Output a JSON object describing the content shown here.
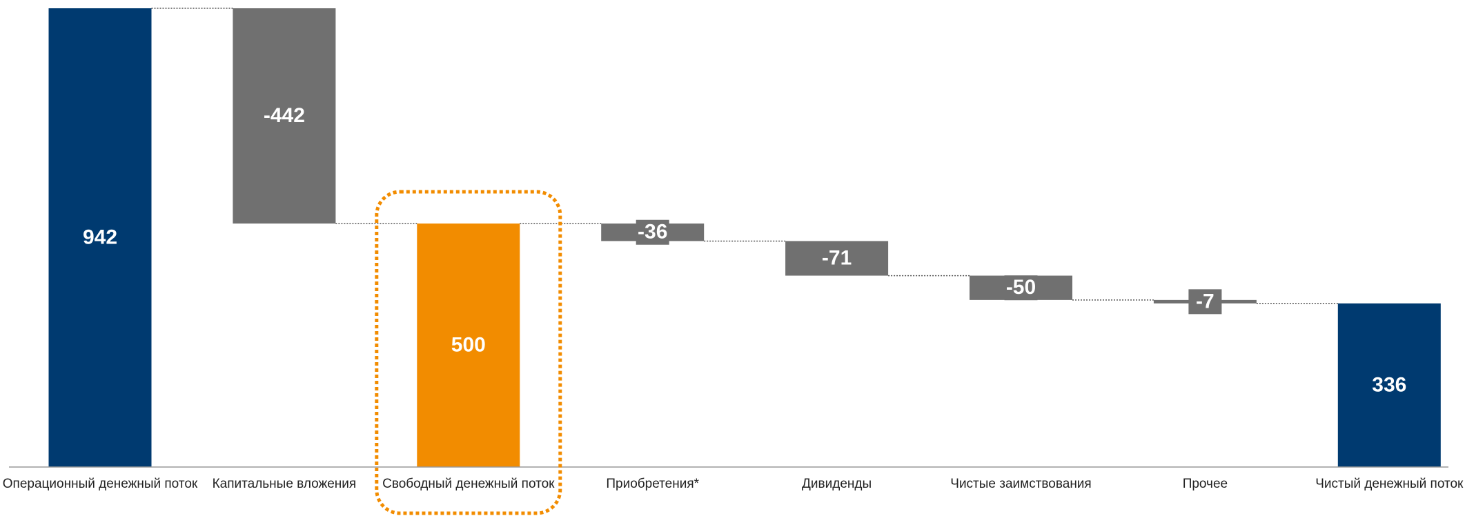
{
  "chart_data": {
    "type": "waterfall",
    "categories": [
      "Операционный денежный поток",
      "Капитальные вложения",
      "Свободный денежный поток",
      "Приобретения*",
      "Дивиденды",
      "Чистые заимствования",
      "Прочее",
      "Чистый денежный поток"
    ],
    "values": [
      942,
      -442,
      500,
      -36,
      -71,
      -50,
      -7,
      336
    ],
    "colors": [
      "#003a70",
      "#707070",
      "#f28c00",
      "#707070",
      "#707070",
      "#707070",
      "#707070",
      "#003a70"
    ],
    "highlight": 2,
    "ylim": [
      0,
      942
    ]
  }
}
